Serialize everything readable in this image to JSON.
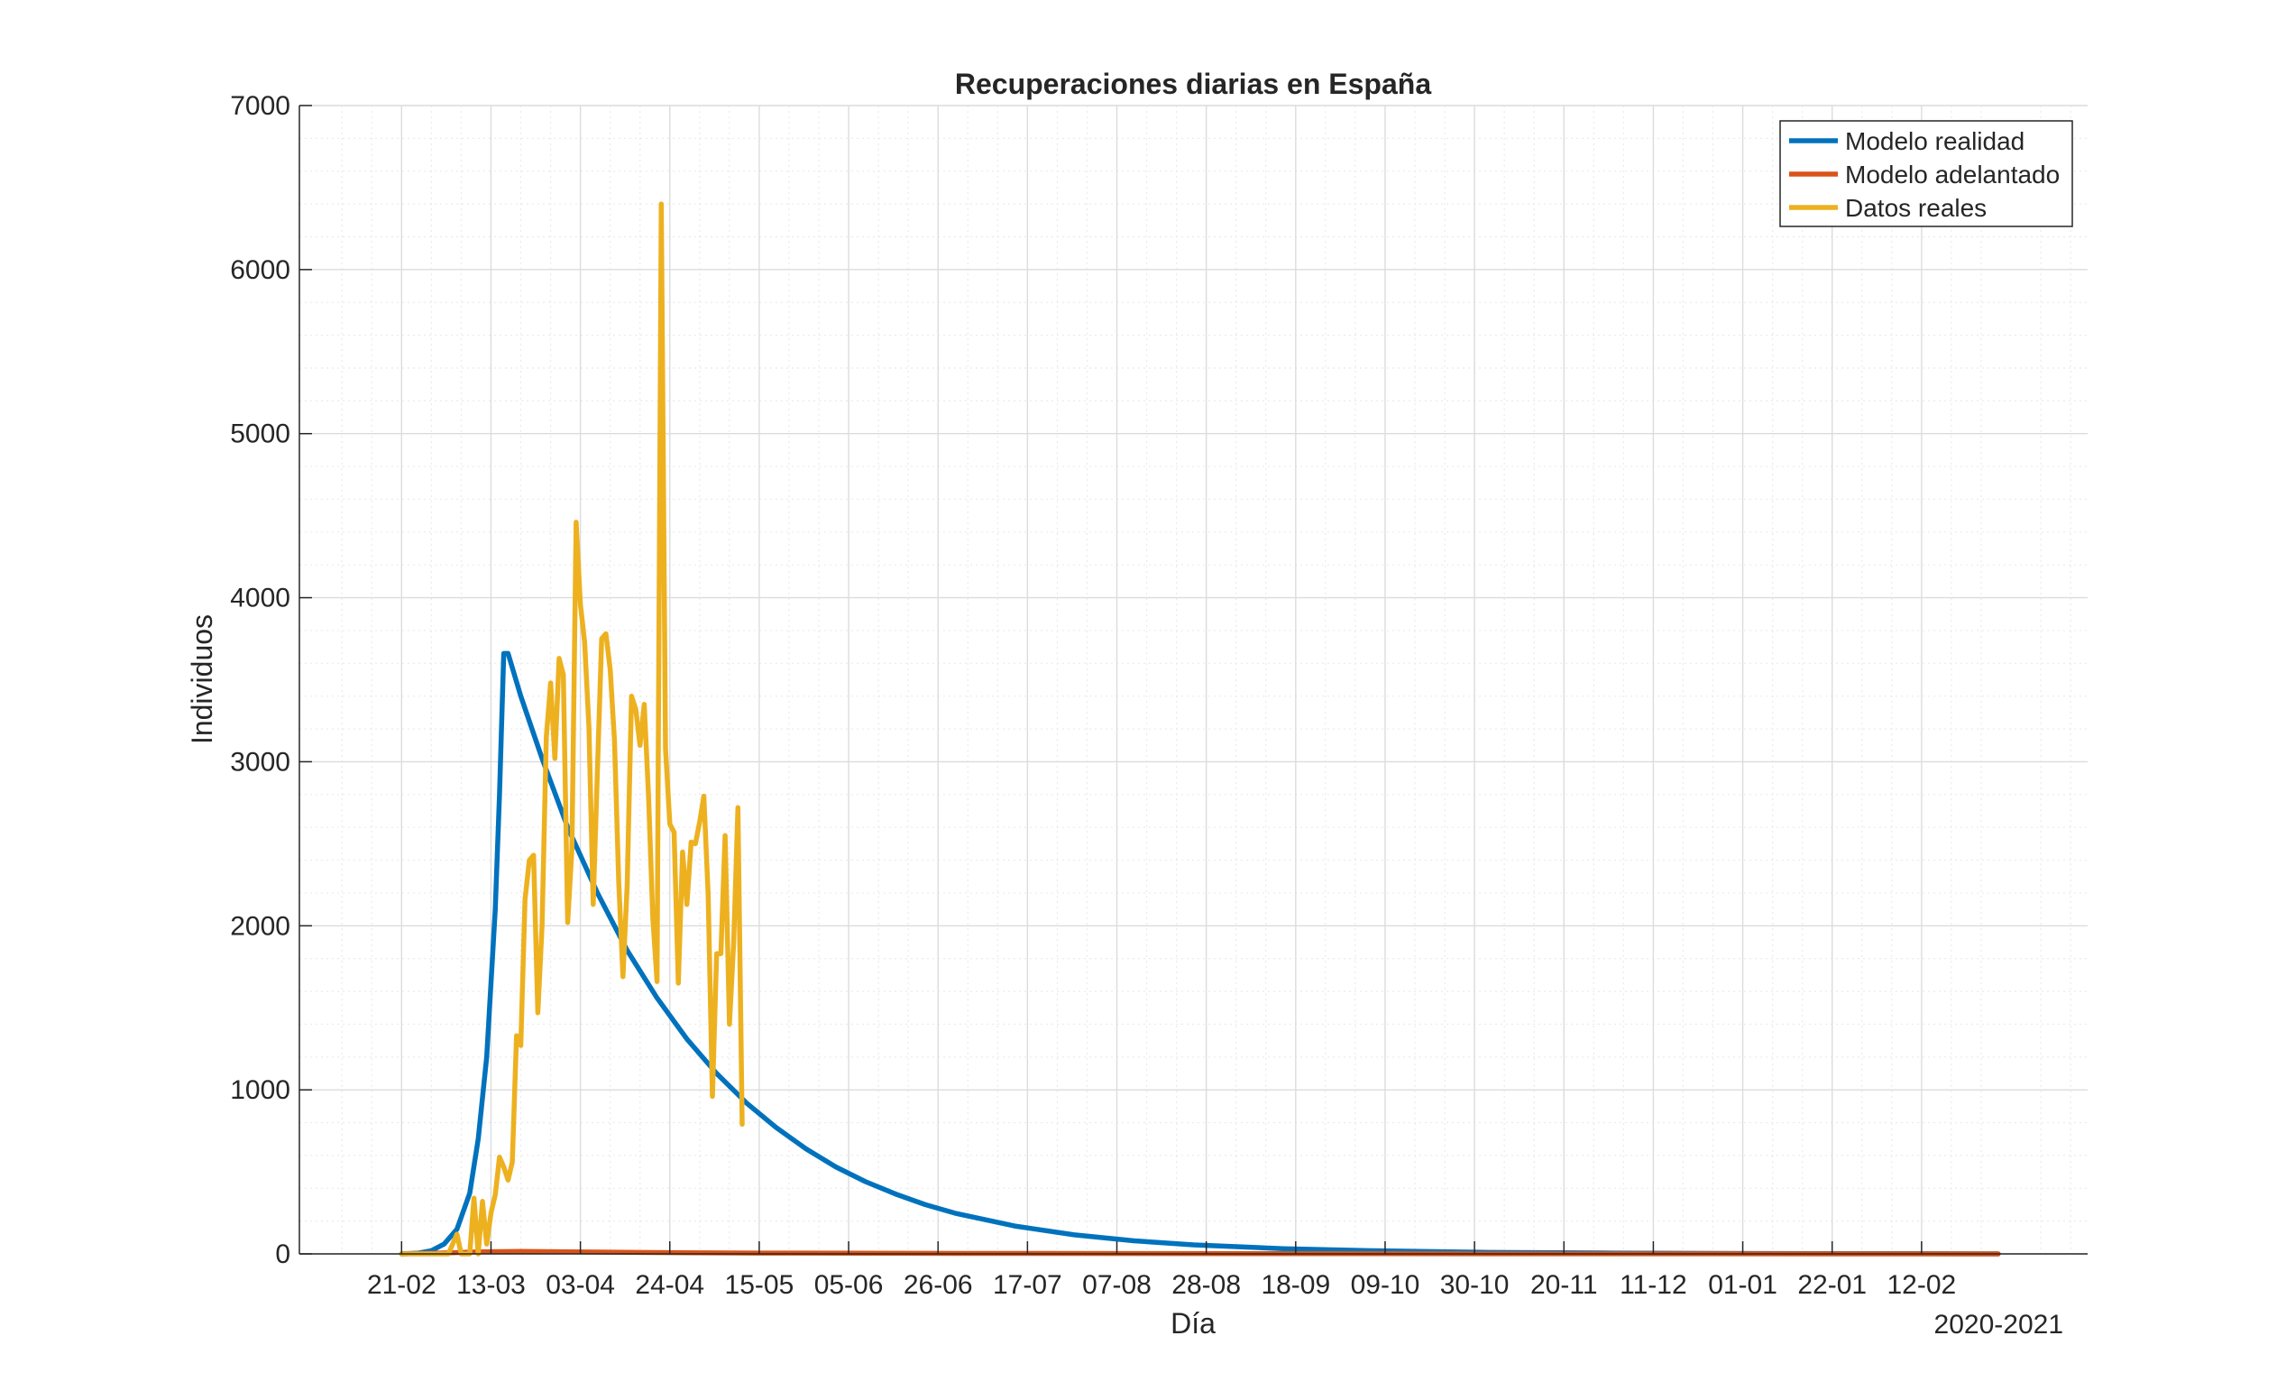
{
  "chart_data": {
    "type": "line",
    "title": "Recuperaciones diarias en España",
    "xlabel": "Día",
    "ylabel": "Individuos",
    "x_secondary_label": "2020-2021",
    "ylim": [
      0,
      7000
    ],
    "xlim": [
      "2020-01-28",
      "2021-03-23"
    ],
    "yticks": [
      0,
      1000,
      2000,
      3000,
      4000,
      5000,
      6000,
      7000
    ],
    "xticks": [
      {
        "date": "2020-02-21",
        "label": "21-02"
      },
      {
        "date": "2020-03-13",
        "label": "13-03"
      },
      {
        "date": "2020-04-03",
        "label": "03-04"
      },
      {
        "date": "2020-04-24",
        "label": "24-04"
      },
      {
        "date": "2020-05-15",
        "label": "15-05"
      },
      {
        "date": "2020-06-05",
        "label": "05-06"
      },
      {
        "date": "2020-06-26",
        "label": "26-06"
      },
      {
        "date": "2020-07-17",
        "label": "17-07"
      },
      {
        "date": "2020-08-07",
        "label": "07-08"
      },
      {
        "date": "2020-08-28",
        "label": "28-08"
      },
      {
        "date": "2020-09-18",
        "label": "18-09"
      },
      {
        "date": "2020-10-09",
        "label": "09-10"
      },
      {
        "date": "2020-10-30",
        "label": "30-10"
      },
      {
        "date": "2020-11-20",
        "label": "20-11"
      },
      {
        "date": "2020-12-11",
        "label": "11-12"
      },
      {
        "date": "2021-01-01",
        "label": "01-01"
      },
      {
        "date": "2021-01-22",
        "label": "22-01"
      },
      {
        "date": "2021-02-12",
        "label": "12-02"
      }
    ],
    "grid": true,
    "minor_grid": true,
    "legend_position": "top-right",
    "series": [
      {
        "name": "Modelo realidad",
        "color": "#0072BD",
        "points": [
          [
            "2020-02-21",
            0
          ],
          [
            "2020-02-25",
            5
          ],
          [
            "2020-02-28",
            20
          ],
          [
            "2020-03-02",
            60
          ],
          [
            "2020-03-05",
            150
          ],
          [
            "2020-03-08",
            370
          ],
          [
            "2020-03-10",
            700
          ],
          [
            "2020-03-12",
            1200
          ],
          [
            "2020-03-14",
            2100
          ],
          [
            "2020-03-15",
            2800
          ],
          [
            "2020-03-16",
            3660
          ],
          [
            "2020-03-17",
            3660
          ],
          [
            "2020-03-20",
            3400
          ],
          [
            "2020-03-25",
            3020
          ],
          [
            "2020-03-31",
            2600
          ],
          [
            "2020-04-07",
            2200
          ],
          [
            "2020-04-14",
            1850
          ],
          [
            "2020-04-21",
            1560
          ],
          [
            "2020-04-28",
            1310
          ],
          [
            "2020-05-05",
            1100
          ],
          [
            "2020-05-12",
            920
          ],
          [
            "2020-05-19",
            770
          ],
          [
            "2020-05-26",
            640
          ],
          [
            "2020-06-02",
            530
          ],
          [
            "2020-06-09",
            440
          ],
          [
            "2020-06-16",
            365
          ],
          [
            "2020-06-23",
            300
          ],
          [
            "2020-06-30",
            248
          ],
          [
            "2020-07-14",
            170
          ],
          [
            "2020-07-28",
            116
          ],
          [
            "2020-08-11",
            80
          ],
          [
            "2020-08-25",
            55
          ],
          [
            "2020-09-15",
            32
          ],
          [
            "2020-10-06",
            19
          ],
          [
            "2020-11-03",
            9
          ],
          [
            "2020-12-01",
            5
          ],
          [
            "2021-01-05",
            2
          ],
          [
            "2021-02-09",
            1
          ],
          [
            "2021-03-02",
            0
          ]
        ]
      },
      {
        "name": "Modelo adelantado",
        "color": "#D95319",
        "points": [
          [
            "2020-02-21",
            0
          ],
          [
            "2020-03-01",
            5
          ],
          [
            "2020-03-10",
            12
          ],
          [
            "2020-03-20",
            15
          ],
          [
            "2020-04-01",
            12
          ],
          [
            "2020-04-20",
            8
          ],
          [
            "2020-05-15",
            5
          ],
          [
            "2020-07-01",
            3
          ],
          [
            "2020-10-01",
            1
          ],
          [
            "2021-03-02",
            0
          ]
        ]
      },
      {
        "name": "Datos reales",
        "color": "#EDB120",
        "points": [
          [
            "2020-02-21",
            0
          ],
          [
            "2020-02-27",
            0
          ],
          [
            "2020-03-01",
            0
          ],
          [
            "2020-03-03",
            0
          ],
          [
            "2020-03-05",
            120
          ],
          [
            "2020-03-06",
            0
          ],
          [
            "2020-03-07",
            0
          ],
          [
            "2020-03-08",
            0
          ],
          [
            "2020-03-09",
            340
          ],
          [
            "2020-03-10",
            0
          ],
          [
            "2020-03-11",
            320
          ],
          [
            "2020-03-12",
            60
          ],
          [
            "2020-03-13",
            250
          ],
          [
            "2020-03-14",
            360
          ],
          [
            "2020-03-15",
            590
          ],
          [
            "2020-03-16",
            530
          ],
          [
            "2020-03-17",
            450
          ],
          [
            "2020-03-18",
            560
          ],
          [
            "2020-03-19",
            1330
          ],
          [
            "2020-03-20",
            1270
          ],
          [
            "2020-03-21",
            2160
          ],
          [
            "2020-03-22",
            2400
          ],
          [
            "2020-03-23",
            2430
          ],
          [
            "2020-03-24",
            1470
          ],
          [
            "2020-03-25",
            2000
          ],
          [
            "2020-03-26",
            3150
          ],
          [
            "2020-03-27",
            3480
          ],
          [
            "2020-03-28",
            3020
          ],
          [
            "2020-03-29",
            3630
          ],
          [
            "2020-03-30",
            3530
          ],
          [
            "2020-03-31",
            2020
          ],
          [
            "2020-04-01",
            2470
          ],
          [
            "2020-04-02",
            4460
          ],
          [
            "2020-04-03",
            3960
          ],
          [
            "2020-04-04",
            3730
          ],
          [
            "2020-04-05",
            3210
          ],
          [
            "2020-04-06",
            2130
          ],
          [
            "2020-04-07",
            2950
          ],
          [
            "2020-04-08",
            3750
          ],
          [
            "2020-04-09",
            3780
          ],
          [
            "2020-04-10",
            3560
          ],
          [
            "2020-04-11",
            3130
          ],
          [
            "2020-04-12",
            2270
          ],
          [
            "2020-04-13",
            1690
          ],
          [
            "2020-04-14",
            2250
          ],
          [
            "2020-04-15",
            3400
          ],
          [
            "2020-04-16",
            3320
          ],
          [
            "2020-04-17",
            3100
          ],
          [
            "2020-04-18",
            3350
          ],
          [
            "2020-04-19",
            2790
          ],
          [
            "2020-04-20",
            2050
          ],
          [
            "2020-04-21",
            1660
          ],
          [
            "2020-04-22",
            6400
          ],
          [
            "2020-04-23",
            3080
          ],
          [
            "2020-04-24",
            2620
          ],
          [
            "2020-04-25",
            2570
          ],
          [
            "2020-04-26",
            1650
          ],
          [
            "2020-04-27",
            2450
          ],
          [
            "2020-04-28",
            2130
          ],
          [
            "2020-04-29",
            2510
          ],
          [
            "2020-04-30",
            2500
          ],
          [
            "2020-05-01",
            2630
          ],
          [
            "2020-05-02",
            2790
          ],
          [
            "2020-05-03",
            2190
          ],
          [
            "2020-05-04",
            960
          ],
          [
            "2020-05-05",
            1830
          ],
          [
            "2020-05-06",
            1830
          ],
          [
            "2020-05-07",
            2550
          ],
          [
            "2020-05-08",
            1400
          ],
          [
            "2020-05-09",
            1900
          ],
          [
            "2020-05-10",
            2720
          ],
          [
            "2020-05-11",
            790
          ]
        ]
      }
    ]
  }
}
